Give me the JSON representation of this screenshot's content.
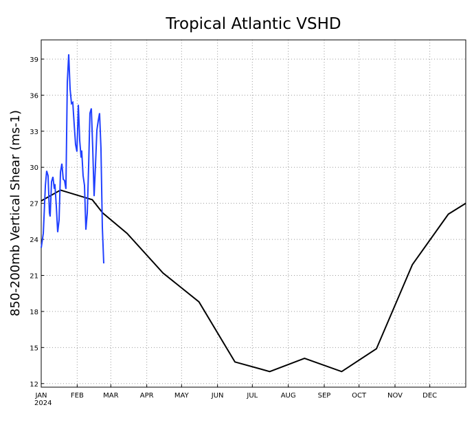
{
  "chart_data": {
    "type": "line",
    "title": "Tropical Atlantic VSHD",
    "ylabel": "850-200mb Vertical Shear (ms-1)",
    "x_sublabel": "2024",
    "xlim": [
      0,
      366
    ],
    "xticks": [
      {
        "value": 0,
        "label": "JAN"
      },
      {
        "value": 31,
        "label": "FEB"
      },
      {
        "value": 60,
        "label": "MAR"
      },
      {
        "value": 91,
        "label": "APR"
      },
      {
        "value": 121,
        "label": "MAY"
      },
      {
        "value": 152,
        "label": "JUN"
      },
      {
        "value": 182,
        "label": "JUL"
      },
      {
        "value": 213,
        "label": "AUG"
      },
      {
        "value": 244,
        "label": "SEP"
      },
      {
        "value": 274,
        "label": "OCT"
      },
      {
        "value": 305,
        "label": "NOV"
      },
      {
        "value": 335,
        "label": "DEC"
      }
    ],
    "ylim": [
      11.7,
      40.6
    ],
    "yticks": [
      12,
      15,
      18,
      21,
      24,
      27,
      30,
      33,
      36,
      39
    ],
    "grid": true,
    "series": [
      {
        "color": "#000000",
        "x": [
          0,
          16.6,
          44,
          53,
          74,
          105,
          136,
          167,
          197,
          227,
          259,
          289,
          320,
          351,
          366
        ],
        "values": [
          27.2,
          28.1,
          27.3,
          26.2,
          24.5,
          21.2,
          18.8,
          13.8,
          13.0,
          14.1,
          13.0,
          14.9,
          21.9,
          26.1,
          27.0
        ]
      },
      {
        "color": "#2040ff",
        "x": [
          0,
          1.8,
          3.6,
          4.7,
          5.9,
          7.1,
          7.7,
          8.9,
          10.1,
          11.3,
          11.8,
          13.0,
          14.2,
          15.4,
          16.6,
          17.8,
          19.0,
          20.1,
          21.3,
          22.5,
          23.7,
          24.9,
          26.1,
          27.2,
          28.4,
          29.6,
          30.8,
          32,
          33.2,
          34.4,
          34.9,
          36.1,
          37.3,
          38.5,
          39.7,
          40.9,
          42,
          43.2,
          44.4,
          45.6,
          46.8,
          48,
          49.2,
          50.3,
          51.5,
          52.7,
          53.9
        ],
        "values": [
          23.3,
          24.5,
          28.5,
          29.7,
          29.3,
          26.2,
          25.9,
          28.8,
          29.2,
          28.2,
          28.6,
          26.8,
          24.6,
          25.6,
          29.6,
          30.3,
          29.0,
          28.9,
          28.2,
          37.1,
          39.4,
          36.5,
          35.3,
          35.4,
          33.6,
          31.9,
          31.3,
          35.2,
          32.2,
          30.8,
          31.4,
          29.3,
          28.5,
          24.8,
          26.2,
          30.2,
          34.5,
          34.9,
          31.6,
          27.6,
          30.2,
          33.1,
          33.9,
          34.5,
          31.6,
          25.0,
          22.0
        ]
      }
    ]
  }
}
